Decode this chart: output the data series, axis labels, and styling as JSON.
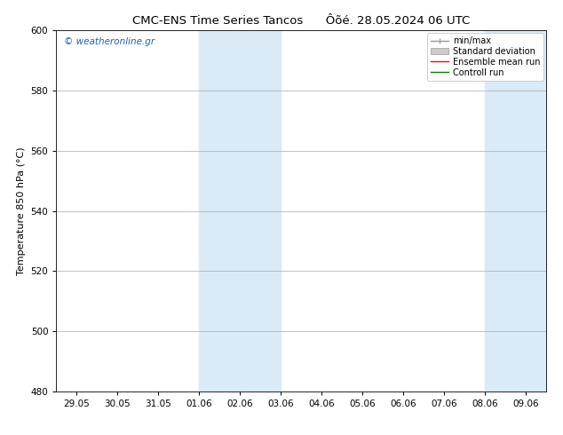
{
  "title": "CMC-ENS Time Series Tancos      Ôõé. 28.05.2024 06 UTC",
  "ylabel": "Temperature 850 hPa (°C)",
  "ylim": [
    480,
    600
  ],
  "yticks": [
    480,
    500,
    520,
    540,
    560,
    580,
    600
  ],
  "xtick_labels": [
    "29.05",
    "30.05",
    "31.05",
    "01.06",
    "02.06",
    "03.06",
    "04.06",
    "05.06",
    "06.06",
    "07.06",
    "08.06",
    "09.06"
  ],
  "shade_color": "#daeaf7",
  "watermark_text": "© weatheronline.gr",
  "watermark_color": "#1a5fbf",
  "bg_color": "#ffffff",
  "grid_color": "#aaaaaa",
  "title_fontsize": 9.5,
  "label_fontsize": 8,
  "tick_fontsize": 7.5,
  "legend_fontsize": 7,
  "n_ticks": 12
}
